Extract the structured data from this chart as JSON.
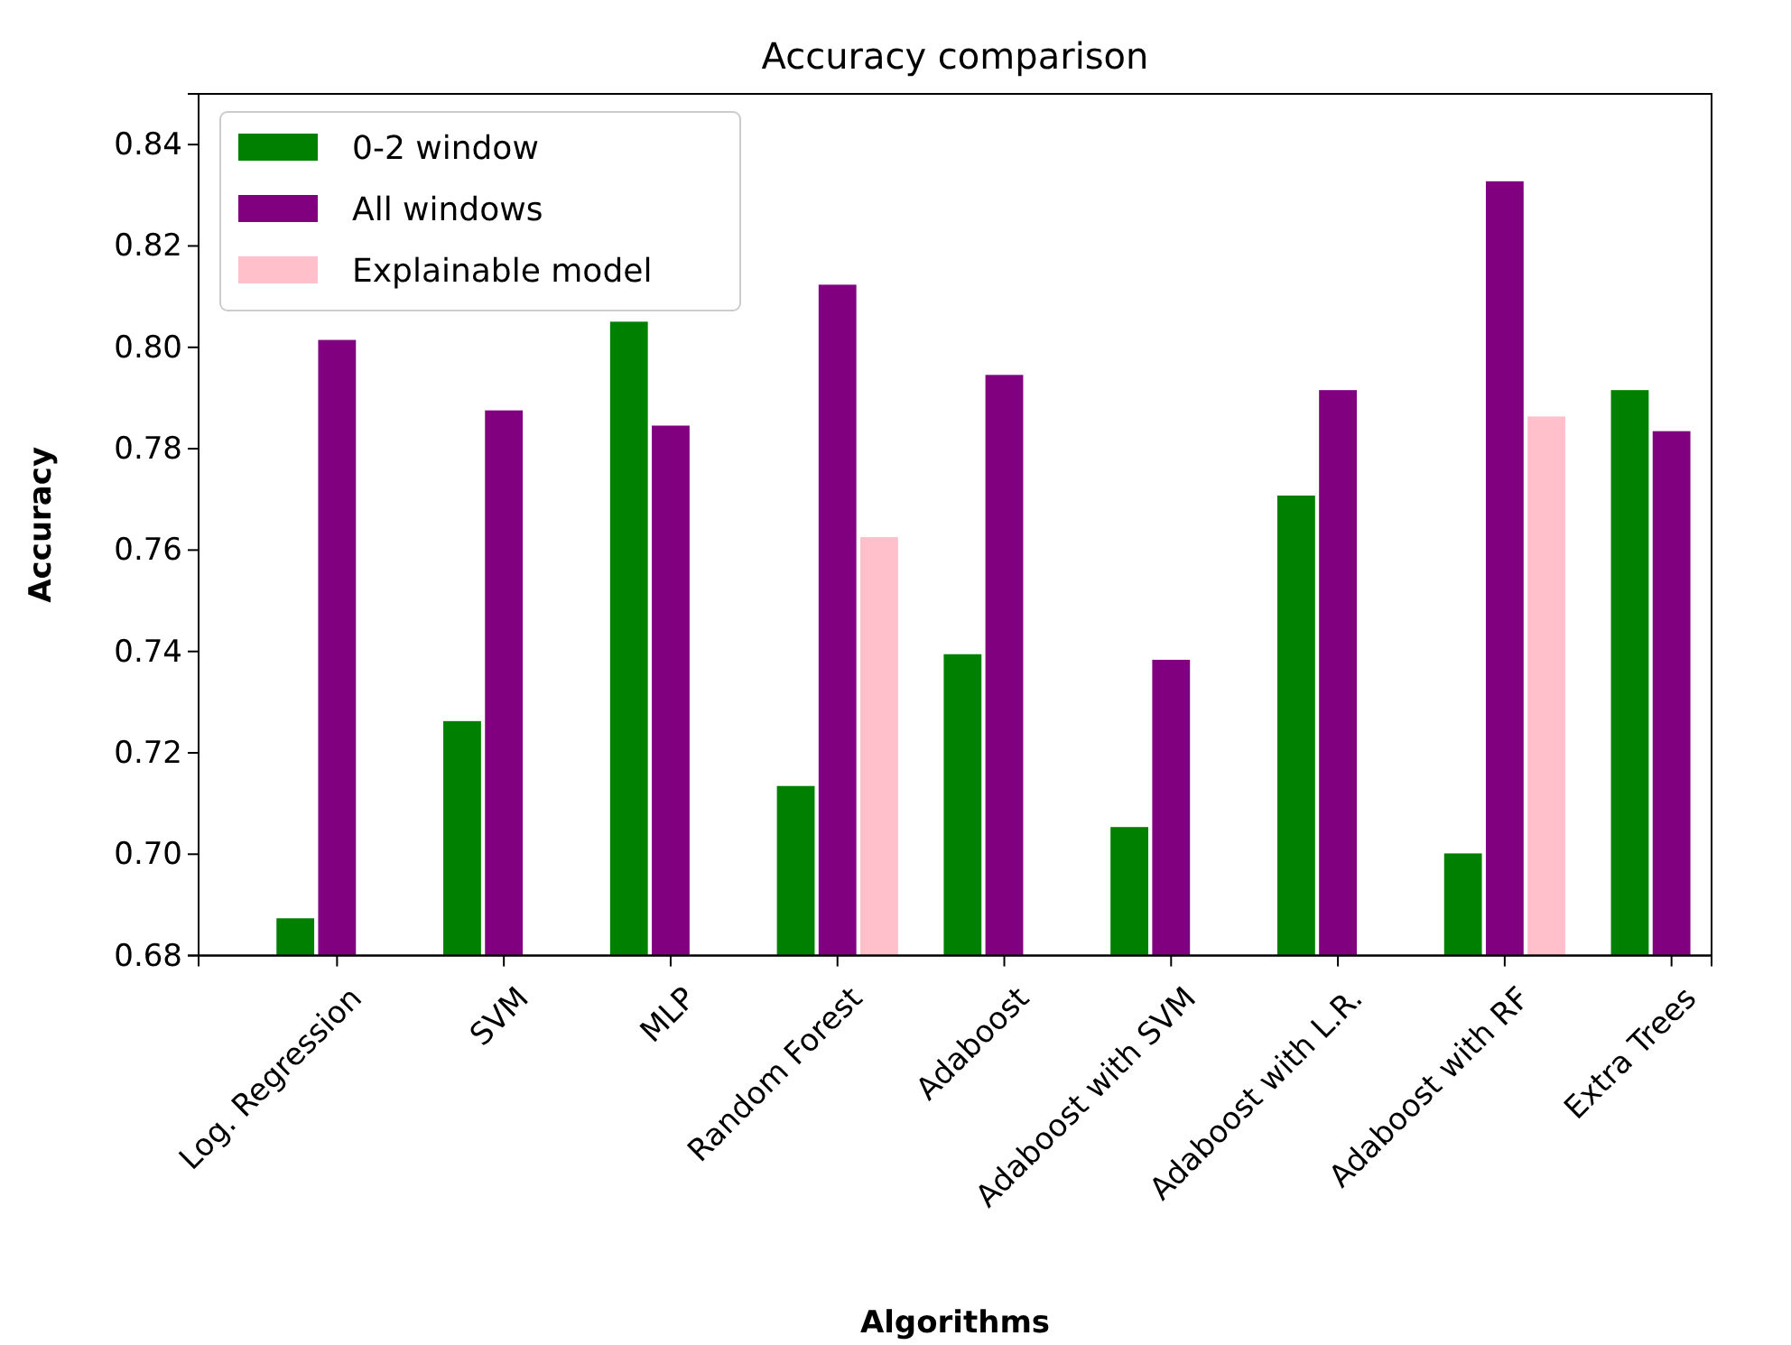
{
  "chart_data": {
    "type": "bar",
    "title": "Accuracy comparison",
    "xlabel": "Algorithms",
    "ylabel": "Accuracy",
    "categories": [
      "Log. Regression",
      "SVM",
      "MLP",
      "Random Forest",
      "Adaboost",
      "Adaboost with SVM",
      "Adaboost with L.R.",
      "Adaboost with RF",
      "Extra Trees"
    ],
    "series": [
      {
        "name": "0-2 window",
        "color": "#008000",
        "values": [
          0.6875,
          0.7264,
          0.8052,
          0.7136,
          0.7396,
          0.7055,
          0.7709,
          0.7003,
          0.7917
        ]
      },
      {
        "name": "All windows",
        "color": "#800080",
        "values": [
          0.8016,
          0.7877,
          0.7847,
          0.8125,
          0.7947,
          0.7385,
          0.7917,
          0.8329,
          0.7836
        ]
      },
      {
        "name": "Explainable model",
        "color": "#ffc0cb",
        "values": [
          null,
          null,
          null,
          0.7627,
          null,
          null,
          null,
          0.7865,
          null
        ]
      }
    ],
    "ylim": [
      0.68,
      0.85
    ],
    "yticks": [
      0.68,
      {
        "value": 0.7,
        "label": "0.70"
      },
      0.72,
      0.74,
      0.76,
      0.78,
      {
        "value": 0.8,
        "label": "0.80"
      },
      0.82,
      0.84
    ],
    "legend": "top left",
    "grid": false
  }
}
